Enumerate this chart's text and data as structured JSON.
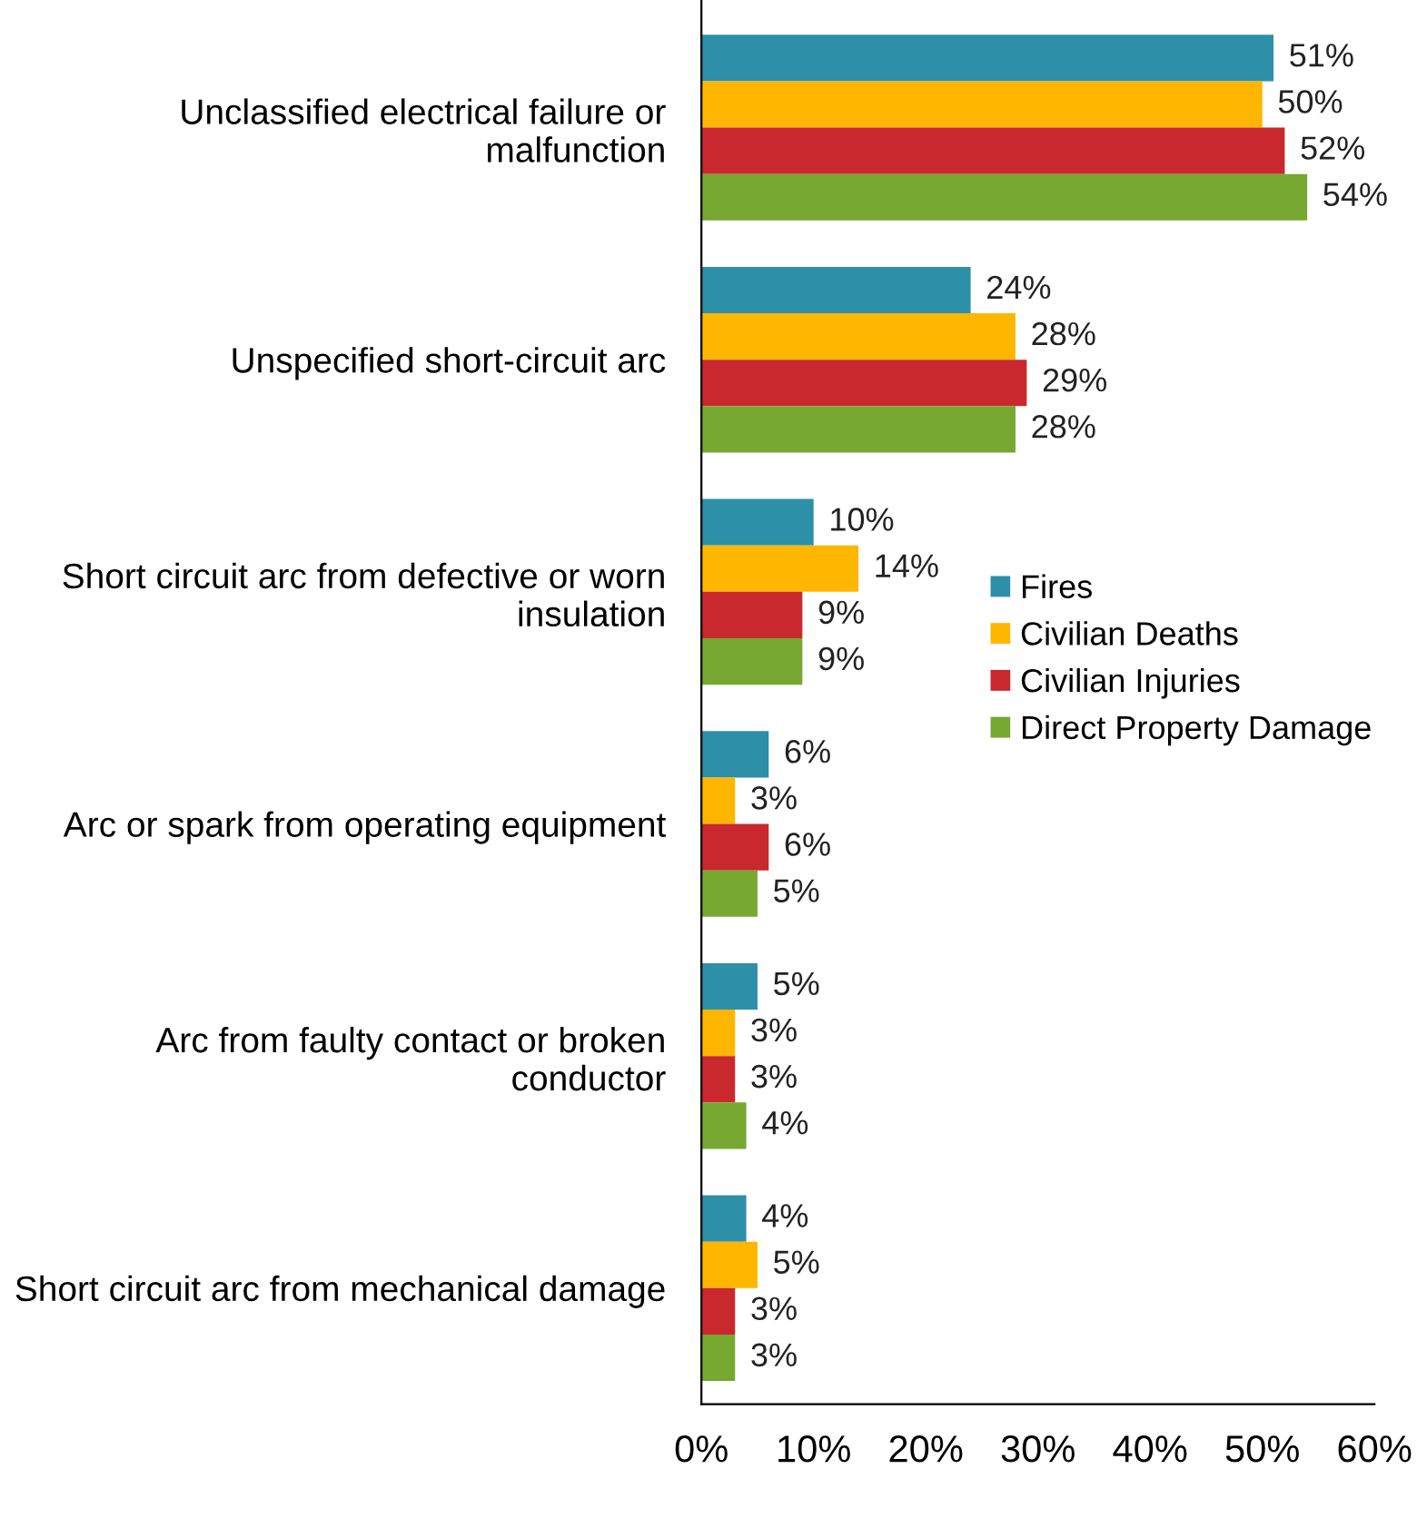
{
  "chart_data": {
    "type": "bar",
    "orientation": "horizontal",
    "categories": [
      "Unclassified electrical failure or malfunction",
      "Unspecified short-circuit arc",
      "Short circuit arc from defective or worn insulation",
      "Arc or spark from operating equipment",
      "Arc from faulty contact or broken conductor",
      "Short circuit arc from mechanical damage"
    ],
    "series": [
      {
        "name": "Fires",
        "color": "#2e8fa8",
        "values": [
          51,
          24,
          10,
          6,
          5,
          4
        ],
        "value_labels": [
          "51%",
          "24%",
          "10%",
          "6%",
          "5%",
          "4%"
        ]
      },
      {
        "name": "Civilian Deaths",
        "color": "#ffb600",
        "values": [
          50,
          28,
          14,
          3,
          3,
          5
        ],
        "value_labels": [
          "50%",
          "28%",
          "14%",
          "3%",
          "3%",
          "5%"
        ]
      },
      {
        "name": "Civilian Injuries",
        "color": "#c8282e",
        "values": [
          52,
          29,
          9,
          6,
          3,
          3
        ],
        "value_labels": [
          "52%",
          "29%",
          "9%",
          "6%",
          "3%",
          "3%"
        ]
      },
      {
        "name": "Direct Property Damage",
        "color": "#76a832",
        "values": [
          54,
          28,
          9,
          5,
          4,
          3
        ],
        "value_labels": [
          "54%",
          "28%",
          "9%",
          "5%",
          "4%",
          "3%"
        ]
      }
    ],
    "xlim": [
      0,
      60
    ],
    "xticks": [
      {
        "value": 0,
        "label": "0%"
      },
      {
        "value": 10,
        "label": "10%"
      },
      {
        "value": 20,
        "label": "20%"
      },
      {
        "value": 30,
        "label": "30%"
      },
      {
        "value": 40,
        "label": "40%"
      },
      {
        "value": 50,
        "label": "50%"
      },
      {
        "value": 60,
        "label": "60%"
      }
    ],
    "grid": false,
    "legend": "right"
  }
}
